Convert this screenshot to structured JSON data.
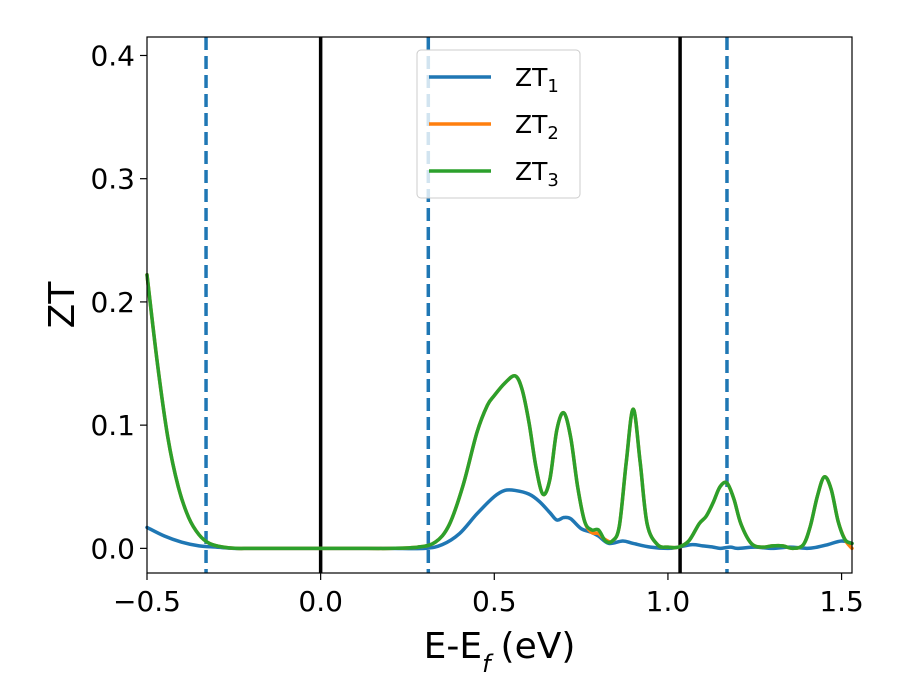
{
  "chart_data": {
    "type": "line",
    "xlabel": "E-E",
    "xlabel_sub": "f",
    "xlabel_unit": "(eV)",
    "ylabel": "ZT",
    "xlim": [
      -0.5,
      1.53
    ],
    "ylim": [
      -0.02,
      0.415
    ],
    "xticks": [
      -0.5,
      0.0,
      0.5,
      1.0,
      1.5
    ],
    "xtick_labels": [
      "−0.5",
      "0.0",
      "0.5",
      "1.0",
      "1.5"
    ],
    "yticks": [
      0.0,
      0.1,
      0.2,
      0.3,
      0.4
    ],
    "ytick_labels": [
      "0.0",
      "0.1",
      "0.2",
      "0.3",
      "0.4"
    ],
    "legend_position": "top-center",
    "grid": false,
    "vlines": [
      {
        "x": -0.33,
        "style": "dashed",
        "color": "#1f77b4"
      },
      {
        "x": 0.0,
        "style": "solid",
        "color": "#000000"
      },
      {
        "x": 0.31,
        "style": "dashed",
        "color": "#1f77b4"
      },
      {
        "x": 1.035,
        "style": "solid",
        "color": "#000000"
      },
      {
        "x": 1.17,
        "style": "dashed",
        "color": "#1f77b4"
      }
    ],
    "series": [
      {
        "name": "ZT",
        "sub": "1",
        "color": "#1f77b4",
        "x": [
          -0.5,
          -0.45,
          -0.4,
          -0.35,
          -0.3,
          -0.25,
          -0.2,
          -0.1,
          0.0,
          0.1,
          0.2,
          0.3,
          0.35,
          0.4,
          0.45,
          0.5,
          0.53,
          0.56,
          0.6,
          0.63,
          0.66,
          0.68,
          0.7,
          0.72,
          0.75,
          0.78,
          0.8,
          0.83,
          0.87,
          0.9,
          0.95,
          1.0,
          1.03,
          1.07,
          1.1,
          1.13,
          1.15,
          1.18,
          1.2,
          1.25,
          1.3,
          1.35,
          1.4,
          1.43,
          1.46,
          1.5,
          1.53
        ],
        "y": [
          0.017,
          0.01,
          0.005,
          0.002,
          0.001,
          0.0,
          0.0,
          0.0,
          0.0,
          0.0,
          0.0,
          0.0,
          0.003,
          0.012,
          0.028,
          0.042,
          0.047,
          0.047,
          0.044,
          0.038,
          0.029,
          0.023,
          0.025,
          0.024,
          0.016,
          0.013,
          0.01,
          0.004,
          0.006,
          0.004,
          0.001,
          0.0,
          0.001,
          0.003,
          0.002,
          0.001,
          0.0,
          0.001,
          0.0,
          0.001,
          0.0,
          0.001,
          0.0,
          0.001,
          0.003,
          0.006,
          0.004
        ]
      },
      {
        "name": "ZT",
        "sub": "2",
        "color": "#ff7f0e",
        "x": [
          -0.5,
          -0.47,
          -0.44,
          -0.41,
          -0.38,
          -0.35,
          -0.32,
          -0.28,
          -0.24,
          -0.2,
          -0.1,
          0.0,
          0.1,
          0.2,
          0.28,
          0.33,
          0.37,
          0.41,
          0.45,
          0.48,
          0.5,
          0.53,
          0.56,
          0.58,
          0.6,
          0.62,
          0.64,
          0.66,
          0.68,
          0.7,
          0.72,
          0.74,
          0.76,
          0.78,
          0.8,
          0.82,
          0.84,
          0.86,
          0.88,
          0.9,
          0.92,
          0.94,
          0.97,
          1.0,
          1.03,
          1.06,
          1.09,
          1.11,
          1.13,
          1.15,
          1.17,
          1.19,
          1.21,
          1.24,
          1.27,
          1.3,
          1.33,
          1.36,
          1.39,
          1.41,
          1.43,
          1.45,
          1.47,
          1.49,
          1.51,
          1.53
        ],
        "y": [
          0.222,
          0.15,
          0.09,
          0.05,
          0.025,
          0.011,
          0.004,
          0.001,
          0.0,
          0.0,
          0.0,
          0.0,
          0.0,
          0.0,
          0.001,
          0.005,
          0.019,
          0.051,
          0.094,
          0.116,
          0.124,
          0.134,
          0.14,
          0.129,
          0.102,
          0.066,
          0.044,
          0.056,
          0.096,
          0.11,
          0.09,
          0.05,
          0.022,
          0.013,
          0.012,
          0.007,
          0.006,
          0.018,
          0.07,
          0.113,
          0.07,
          0.02,
          0.003,
          0.001,
          0.001,
          0.006,
          0.02,
          0.026,
          0.037,
          0.05,
          0.053,
          0.04,
          0.02,
          0.004,
          0.001,
          0.002,
          0.002,
          0.0,
          0.003,
          0.018,
          0.042,
          0.058,
          0.048,
          0.022,
          0.007,
          0.0
        ]
      },
      {
        "name": "ZT",
        "sub": "3",
        "color": "#2ca02c",
        "x": [
          -0.5,
          -0.47,
          -0.44,
          -0.41,
          -0.38,
          -0.35,
          -0.32,
          -0.28,
          -0.24,
          -0.2,
          -0.1,
          0.0,
          0.1,
          0.2,
          0.28,
          0.33,
          0.37,
          0.41,
          0.45,
          0.48,
          0.5,
          0.53,
          0.56,
          0.58,
          0.6,
          0.62,
          0.64,
          0.66,
          0.68,
          0.7,
          0.72,
          0.74,
          0.76,
          0.78,
          0.8,
          0.82,
          0.84,
          0.86,
          0.88,
          0.9,
          0.92,
          0.94,
          0.97,
          1.0,
          1.03,
          1.06,
          1.09,
          1.11,
          1.13,
          1.15,
          1.17,
          1.19,
          1.21,
          1.24,
          1.27,
          1.3,
          1.33,
          1.36,
          1.39,
          1.41,
          1.43,
          1.45,
          1.47,
          1.49,
          1.51,
          1.53
        ],
        "y": [
          0.222,
          0.15,
          0.09,
          0.05,
          0.025,
          0.011,
          0.004,
          0.001,
          0.0,
          0.0,
          0.0,
          0.0,
          0.0,
          0.0,
          0.001,
          0.005,
          0.019,
          0.051,
          0.094,
          0.116,
          0.124,
          0.134,
          0.14,
          0.129,
          0.102,
          0.066,
          0.044,
          0.056,
          0.096,
          0.11,
          0.09,
          0.05,
          0.022,
          0.015,
          0.015,
          0.006,
          0.006,
          0.018,
          0.07,
          0.113,
          0.07,
          0.02,
          0.003,
          0.001,
          0.001,
          0.006,
          0.02,
          0.026,
          0.037,
          0.05,
          0.053,
          0.04,
          0.02,
          0.004,
          0.001,
          0.002,
          0.002,
          0.0,
          0.003,
          0.018,
          0.042,
          0.058,
          0.048,
          0.022,
          0.007,
          0.004
        ]
      }
    ]
  }
}
